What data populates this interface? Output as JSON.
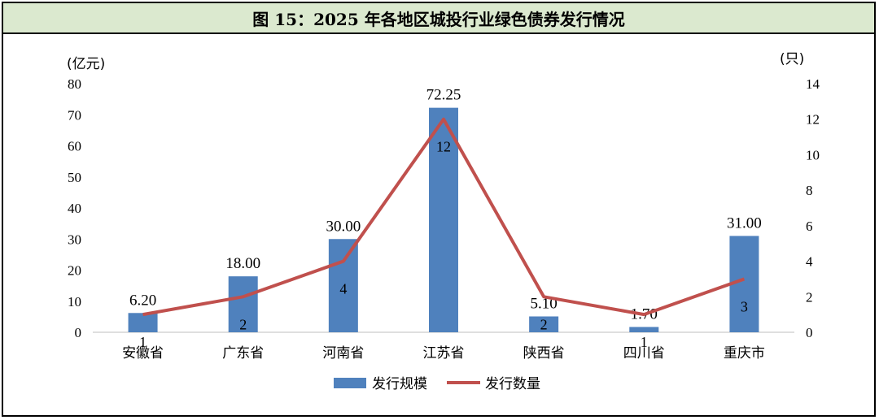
{
  "figure_title": "图 15：2025 年各地区城投行业绿色债券发行情况",
  "chart_data": {
    "type": "bar",
    "categories": [
      "安徽省",
      "广东省",
      "河南省",
      "江苏省",
      "陕西省",
      "四川省",
      "重庆市"
    ],
    "series": [
      {
        "name": "发行规模",
        "type": "bar",
        "axis": "left",
        "values": [
          6.2,
          18.0,
          30.0,
          72.25,
          5.1,
          1.7,
          31.0
        ],
        "labels": [
          "6.20",
          "18.00",
          "30.00",
          "72.25",
          "5.10",
          "1.70",
          "31.00"
        ],
        "color": "#4f81bd"
      },
      {
        "name": "发行数量",
        "type": "line",
        "axis": "right",
        "values": [
          1,
          2,
          4,
          12,
          2,
          1,
          3
        ],
        "labels": [
          "1",
          "2",
          "4",
          "12",
          "2",
          "1",
          "3"
        ],
        "color": "#c0504d"
      }
    ],
    "y_left": {
      "unit": "(亿元)",
      "ylim": [
        0,
        80
      ],
      "ticks": [
        "0",
        "10",
        "20",
        "30",
        "40",
        "50",
        "60",
        "70",
        "80"
      ]
    },
    "y_right": {
      "unit": "(只)",
      "ylim": [
        0,
        14
      ],
      "ticks": [
        "0",
        "2",
        "4",
        "6",
        "8",
        "10",
        "12",
        "14"
      ]
    },
    "grid": false,
    "legend_position": "bottom-center",
    "title_bar_color": "#dbe9cf"
  }
}
